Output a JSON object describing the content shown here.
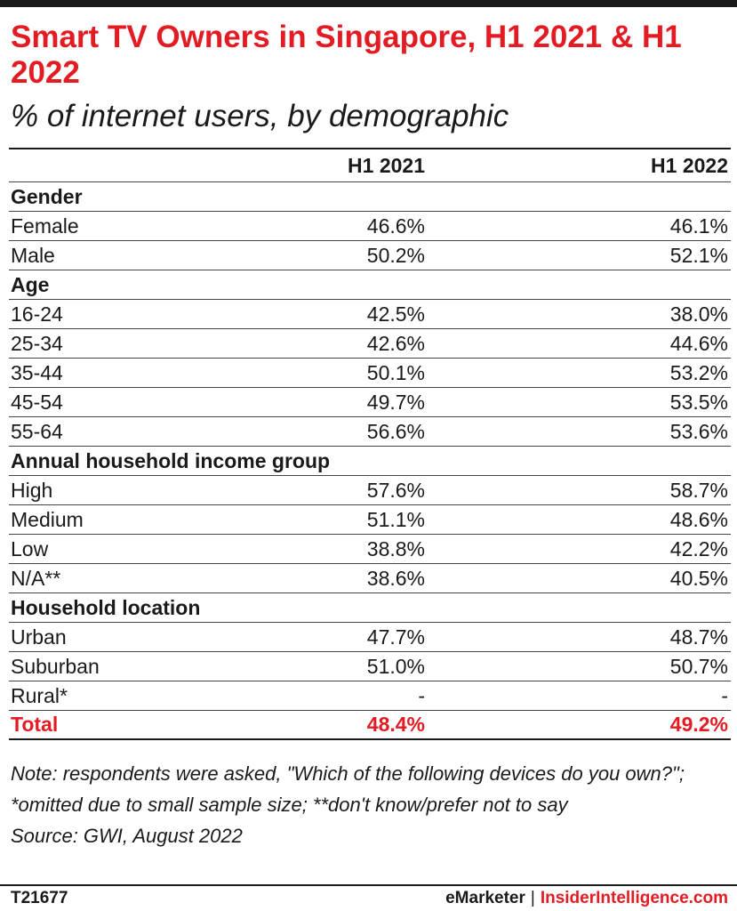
{
  "title": "Smart TV Owners in Singapore, H1 2021 & H1 2022",
  "subtitle": "% of internet users, by demographic",
  "chart_data": {
    "type": "table",
    "columns": [
      "H1 2021",
      "H1 2022"
    ],
    "rows": [
      {
        "kind": "section",
        "label": "Gender"
      },
      {
        "kind": "data",
        "label": "Female",
        "values": [
          "46.6%",
          "46.1%"
        ]
      },
      {
        "kind": "data",
        "label": "Male",
        "values": [
          "50.2%",
          "52.1%"
        ]
      },
      {
        "kind": "section",
        "label": "Age"
      },
      {
        "kind": "data",
        "label": "16-24",
        "values": [
          "42.5%",
          "38.0%"
        ]
      },
      {
        "kind": "data",
        "label": "25-34",
        "values": [
          "42.6%",
          "44.6%"
        ]
      },
      {
        "kind": "data",
        "label": "35-44",
        "values": [
          "50.1%",
          "53.2%"
        ]
      },
      {
        "kind": "data",
        "label": "45-54",
        "values": [
          "49.7%",
          "53.5%"
        ]
      },
      {
        "kind": "data",
        "label": "55-64",
        "values": [
          "56.6%",
          "53.6%"
        ]
      },
      {
        "kind": "section",
        "label": "Annual household income group"
      },
      {
        "kind": "data",
        "label": "High",
        "values": [
          "57.6%",
          "58.7%"
        ]
      },
      {
        "kind": "data",
        "label": "Medium",
        "values": [
          "51.1%",
          "48.6%"
        ]
      },
      {
        "kind": "data",
        "label": "Low",
        "values": [
          "38.8%",
          "42.2%"
        ]
      },
      {
        "kind": "data",
        "label": "N/A**",
        "values": [
          "38.6%",
          "40.5%"
        ]
      },
      {
        "kind": "section",
        "label": "Household location"
      },
      {
        "kind": "data",
        "label": "Urban",
        "values": [
          "47.7%",
          "48.7%"
        ]
      },
      {
        "kind": "data",
        "label": "Suburban",
        "values": [
          "51.0%",
          "50.7%"
        ]
      },
      {
        "kind": "data",
        "label": "Rural*",
        "values": [
          "-",
          "-"
        ]
      },
      {
        "kind": "total",
        "label": "Total",
        "values": [
          "48.4%",
          "49.2%"
        ]
      }
    ]
  },
  "note": "Note: respondents were asked, \"Which of the following devices do you own?\"; *omitted due to small sample size; **don't know/prefer not to say",
  "source": "Source: GWI, August 2022",
  "footer": {
    "chart_id": "T21677",
    "brand_left": "eMarketer",
    "separator": "|",
    "brand_right": "InsiderIntelligence.com"
  },
  "colors": {
    "accent": "#e31b23",
    "text": "#1a1a1a"
  }
}
